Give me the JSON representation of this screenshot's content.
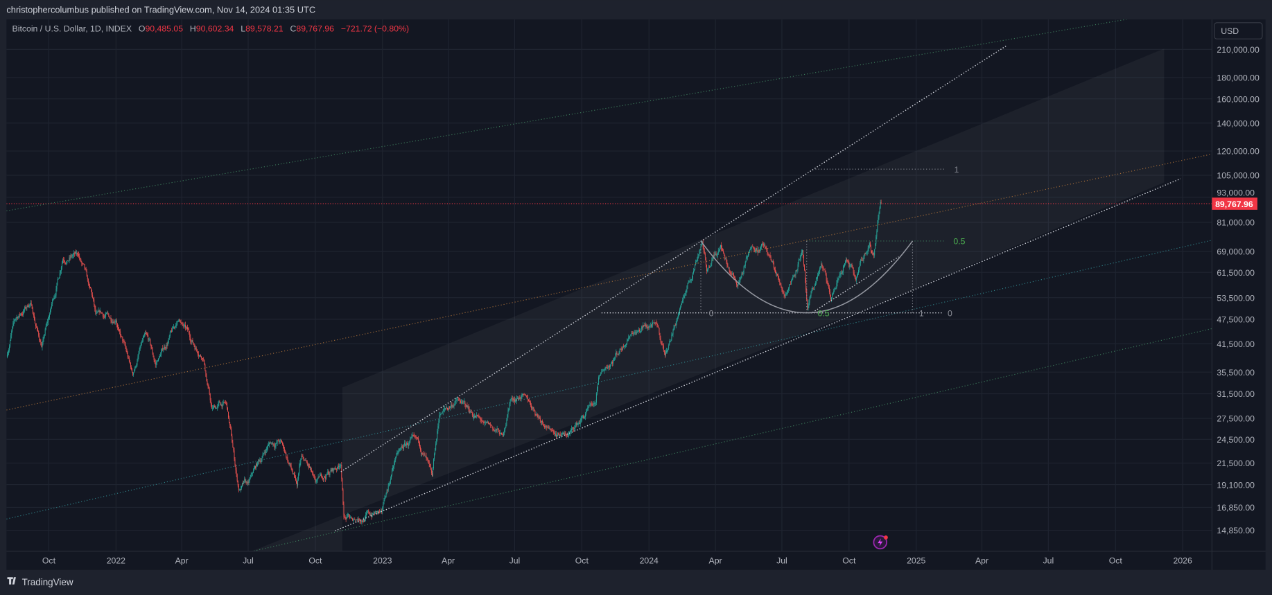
{
  "header": {
    "publisher_line": "christophercolumbus published on TradingView.com, Nov 14, 2024 01:35 UTC"
  },
  "legend": {
    "symbol": "Bitcoin / U.S. Dollar, 1D, INDEX",
    "open_label": "O",
    "open": "90,485.05",
    "high_label": "H",
    "high": "90,602.34",
    "low_label": "L",
    "low": "89,578.21",
    "close_label": "C",
    "close": "89,767.96",
    "change": "−721.72 (−0.80%)"
  },
  "price_axis": {
    "currency": "USD",
    "last_price": "89,767.96",
    "labels": [
      {
        "text": "210,000.00",
        "value": 210000
      },
      {
        "text": "180,000.00",
        "value": 180000
      },
      {
        "text": "160,000.00",
        "value": 160000
      },
      {
        "text": "140,000.00",
        "value": 140000
      },
      {
        "text": "120,000.00",
        "value": 120000
      },
      {
        "text": "105,000.00",
        "value": 105000
      },
      {
        "text": "93,000.00",
        "value": 93000
      },
      {
        "text": "81,000.00",
        "value": 81000
      },
      {
        "text": "69,000.00",
        "value": 69000
      },
      {
        "text": "61,500.00",
        "value": 61500
      },
      {
        "text": "53,500.00",
        "value": 53500
      },
      {
        "text": "47,500.00",
        "value": 47500
      },
      {
        "text": "41,500.00",
        "value": 41500
      },
      {
        "text": "35,500.00",
        "value": 35500
      },
      {
        "text": "31,500.00",
        "value": 31500
      },
      {
        "text": "27,500.00",
        "value": 27500
      },
      {
        "text": "24,500.00",
        "value": 24500
      },
      {
        "text": "21,500.00",
        "value": 21500
      },
      {
        "text": "19,100.00",
        "value": 19100
      },
      {
        "text": "16,850.00",
        "value": 16850
      },
      {
        "text": "14,850.00",
        "value": 14850
      }
    ]
  },
  "time_axis": {
    "labels": [
      {
        "text": "Oct",
        "date": "2021-10-01"
      },
      {
        "text": "2022",
        "date": "2022-01-01"
      },
      {
        "text": "Apr",
        "date": "2022-04-01"
      },
      {
        "text": "Jul",
        "date": "2022-07-01"
      },
      {
        "text": "Oct",
        "date": "2022-10-01"
      },
      {
        "text": "2023",
        "date": "2023-01-01"
      },
      {
        "text": "Apr",
        "date": "2023-04-01"
      },
      {
        "text": "Jul",
        "date": "2023-07-01"
      },
      {
        "text": "Oct",
        "date": "2023-10-01"
      },
      {
        "text": "2024",
        "date": "2024-01-01"
      },
      {
        "text": "Apr",
        "date": "2024-04-01"
      },
      {
        "text": "Jul",
        "date": "2024-07-01"
      },
      {
        "text": "Oct",
        "date": "2024-10-01"
      },
      {
        "text": "2025",
        "date": "2025-01-01"
      },
      {
        "text": "Apr",
        "date": "2025-04-01"
      },
      {
        "text": "Jul",
        "date": "2025-07-01"
      },
      {
        "text": "Oct",
        "date": "2025-10-01"
      },
      {
        "text": "2026",
        "date": "2026-01-01"
      }
    ]
  },
  "footer": {
    "brand": "TradingView"
  },
  "colors": {
    "up": "#26a69a",
    "down": "#ef5350",
    "last_price": "#f23645",
    "background": "#131722",
    "fib_green": "#4caf50",
    "orange_line": "#b8763a",
    "purple_event": "#9c27b0"
  },
  "chart_data": {
    "type": "candlestick",
    "scale": "log",
    "interval": "1D",
    "ylim": [
      12500,
      260000
    ],
    "xlim": [
      "2021-08-04",
      "2026-02-12"
    ],
    "grid": true,
    "last_close": 89767.96,
    "price_keypoints": [
      [
        "2021-08-04",
        38500
      ],
      [
        "2021-08-14",
        47000
      ],
      [
        "2021-09-06",
        52000
      ],
      [
        "2021-09-21",
        40700
      ],
      [
        "2021-10-01",
        48000
      ],
      [
        "2021-10-20",
        66000
      ],
      [
        "2021-11-10",
        68000
      ],
      [
        "2021-11-25",
        57000
      ],
      [
        "2021-12-04",
        49000
      ],
      [
        "2022-01-01",
        47000
      ],
      [
        "2022-01-24",
        35000
      ],
      [
        "2022-02-10",
        44000
      ],
      [
        "2022-02-24",
        37000
      ],
      [
        "2022-03-28",
        47500
      ],
      [
        "2022-05-01",
        38000
      ],
      [
        "2022-05-12",
        29000
      ],
      [
        "2022-06-01",
        30000
      ],
      [
        "2022-06-18",
        18500
      ],
      [
        "2022-07-01",
        19300
      ],
      [
        "2022-07-30",
        24000
      ],
      [
        "2022-08-15",
        24300
      ],
      [
        "2022-09-06",
        19000
      ],
      [
        "2022-09-12",
        22300
      ],
      [
        "2022-10-01",
        19400
      ],
      [
        "2022-11-05",
        21300
      ],
      [
        "2022-11-09",
        16000
      ],
      [
        "2022-11-21",
        15700
      ],
      [
        "2022-12-31",
        16500
      ],
      [
        "2023-01-20",
        22600
      ],
      [
        "2023-02-16",
        24800
      ],
      [
        "2023-03-10",
        20000
      ],
      [
        "2023-03-20",
        28000
      ],
      [
        "2023-04-14",
        30500
      ],
      [
        "2023-05-20",
        26800
      ],
      [
        "2023-06-15",
        25000
      ],
      [
        "2023-06-25",
        30500
      ],
      [
        "2023-07-13",
        31400
      ],
      [
        "2023-08-17",
        26000
      ],
      [
        "2023-09-11",
        25000
      ],
      [
        "2023-10-20",
        30000
      ],
      [
        "2023-10-24",
        34500
      ],
      [
        "2023-12-08",
        44000
      ],
      [
        "2024-01-11",
        46500
      ],
      [
        "2024-01-23",
        39000
      ],
      [
        "2024-02-15",
        52000
      ],
      [
        "2024-03-14",
        73000
      ],
      [
        "2024-03-20",
        62000
      ],
      [
        "2024-04-08",
        71500
      ],
      [
        "2024-05-01",
        57000
      ],
      [
        "2024-05-21",
        71000
      ],
      [
        "2024-06-07",
        71500
      ],
      [
        "2024-07-05",
        54000
      ],
      [
        "2024-07-29",
        69500
      ],
      [
        "2024-08-05",
        50000
      ],
      [
        "2024-08-24",
        64500
      ],
      [
        "2024-09-06",
        53000
      ],
      [
        "2024-09-27",
        66000
      ],
      [
        "2024-10-10",
        59000
      ],
      [
        "2024-10-29",
        72500
      ],
      [
        "2024-11-04",
        67500
      ],
      [
        "2024-11-13",
        90500
      ],
      [
        "2024-11-14",
        89767.96
      ]
    ],
    "drawings": [
      {
        "kind": "trendline",
        "style": "green-dotted",
        "from": [
          "2021-08-04",
          86300
        ],
        "to": [
          "2025-11-09",
          252000
        ]
      },
      {
        "kind": "trendline",
        "style": "orange-dotted",
        "from": [
          "2021-08-04",
          28800
        ],
        "to": [
          "2026-02-10",
          118000
        ]
      },
      {
        "kind": "trendline",
        "style": "teal-dotted",
        "from": [
          "2021-08-04",
          15800
        ],
        "to": [
          "2026-02-10",
          73400
        ]
      },
      {
        "kind": "trendline",
        "style": "green-dotted",
        "from": [
          "2022-07-05",
          13200
        ],
        "to": [
          "2026-02-10",
          45100
        ]
      },
      {
        "kind": "trendline",
        "style": "white-dotted",
        "from": [
          "2022-11-05",
          20500
        ],
        "to": [
          "2025-05-04",
          214000
        ]
      },
      {
        "kind": "trendline",
        "style": "white-dotted",
        "from": [
          "2022-10-28",
          14800
        ],
        "to": [
          "2025-12-29",
          103000
        ]
      },
      {
        "kind": "trendline",
        "style": "white-dotted",
        "from": [
          "2024-08-12",
          49300
        ],
        "to": [
          "2024-12-08",
          67000
        ]
      },
      {
        "kind": "hline",
        "style": "white-dotted",
        "from": [
          "2023-10-28",
          49200
        ],
        "to": [
          "2025-02-05",
          49200
        ]
      },
      {
        "kind": "hline",
        "style": "gray-dotted",
        "from": [
          "2024-08-16",
          108600
        ],
        "to": [
          "2025-02-10",
          108600
        ]
      },
      {
        "kind": "hline",
        "style": "green-dotted",
        "from": [
          "2024-08-04",
          73100
        ],
        "to": [
          "2025-02-10",
          73100
        ]
      },
      {
        "kind": "vline",
        "style": "gray-dotted",
        "from": [
          "2024-03-12",
          73100
        ],
        "to": [
          "2024-03-12",
          49200
        ]
      },
      {
        "kind": "vline",
        "style": "gray-dotted",
        "from": [
          "2024-08-04",
          73100
        ],
        "to": [
          "2024-08-04",
          49200
        ]
      },
      {
        "kind": "vline",
        "style": "gray-dotted",
        "from": [
          "2024-12-27",
          73100
        ],
        "to": [
          "2024-12-27",
          49200
        ]
      },
      {
        "kind": "arc",
        "style": "gray-solid",
        "from": [
          "2024-03-12",
          73100
        ],
        "via": [
          "2024-08-04",
          49200
        ],
        "to": [
          "2024-12-27",
          73100
        ]
      }
    ],
    "fib_labels": [
      {
        "text": "0",
        "at": [
          "2024-03-23",
          49200
        ],
        "style": "gray"
      },
      {
        "text": "1",
        "at": [
          "2025-01-05",
          49200
        ],
        "style": "gray"
      },
      {
        "text": "0",
        "at": [
          "2025-02-13",
          49200
        ],
        "style": "gray"
      },
      {
        "text": "1",
        "at": [
          "2025-02-22",
          108600
        ],
        "style": "gray"
      },
      {
        "text": "0.5",
        "at": [
          "2025-02-21",
          73100
        ],
        "style": "green"
      },
      {
        "text": "0.5",
        "at": [
          "2024-08-19",
          49200
        ],
        "style": "green"
      }
    ]
  }
}
